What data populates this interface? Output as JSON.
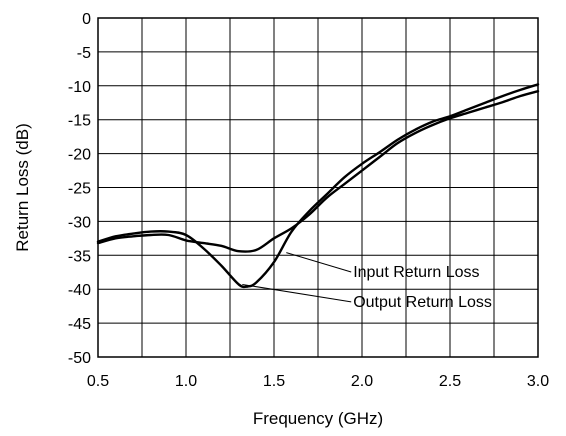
{
  "chart_data": {
    "type": "line",
    "xlabel": "Frequency (GHz)",
    "ylabel": "Return Loss (dB)",
    "xlim": [
      0.5,
      3.0
    ],
    "ylim": [
      -50,
      0
    ],
    "xticks": [
      0.5,
      0.75,
      1.0,
      1.25,
      1.5,
      1.75,
      2.0,
      2.25,
      2.5,
      2.75,
      3.0
    ],
    "xtick_labels": [
      "0.5",
      "",
      "1.0",
      "",
      "1.5",
      "",
      "2.0",
      "",
      "2.5",
      "",
      "3.0"
    ],
    "yticks": [
      0,
      -5,
      -10,
      -15,
      -20,
      -25,
      -30,
      -35,
      -40,
      -45,
      -50
    ],
    "ytick_labels": [
      "0",
      "-5",
      "-10",
      "-15",
      "-20",
      "-25",
      "-30",
      "-35",
      "-40",
      "-45",
      "-50"
    ],
    "grid": true,
    "series": [
      {
        "name": "Input Return Loss",
        "x": [
          0.5,
          0.6,
          0.7,
          0.8,
          0.9,
          1.0,
          1.1,
          1.2,
          1.3,
          1.4,
          1.5,
          1.6,
          1.7,
          1.8,
          1.9,
          2.0,
          2.1,
          2.2,
          2.3,
          2.4,
          2.5,
          2.6,
          2.7,
          2.8,
          2.9,
          3.0
        ],
        "y": [
          -33.2,
          -32.5,
          -32.2,
          -32.0,
          -32.0,
          -32.8,
          -33.2,
          -33.6,
          -34.4,
          -34.2,
          -32.5,
          -31.0,
          -29.0,
          -26.5,
          -24.5,
          -22.5,
          -20.5,
          -18.5,
          -17.0,
          -15.8,
          -14.8,
          -14.0,
          -13.2,
          -12.4,
          -11.5,
          -10.8
        ]
      },
      {
        "name": "Output Return Loss",
        "x": [
          0.5,
          0.6,
          0.7,
          0.8,
          0.9,
          1.0,
          1.1,
          1.2,
          1.3,
          1.35,
          1.4,
          1.5,
          1.6,
          1.7,
          1.8,
          1.9,
          2.0,
          2.1,
          2.2,
          2.3,
          2.4,
          2.5,
          2.6,
          2.7,
          2.8,
          2.9,
          3.0
        ],
        "y": [
          -33.0,
          -32.2,
          -31.8,
          -31.5,
          -31.5,
          -32.0,
          -34.0,
          -36.5,
          -39.3,
          -39.6,
          -39.0,
          -36.0,
          -31.5,
          -28.5,
          -26.0,
          -23.5,
          -21.5,
          -19.8,
          -18.0,
          -16.5,
          -15.3,
          -14.5,
          -13.5,
          -12.5,
          -11.5,
          -10.6,
          -9.8
        ]
      }
    ],
    "annotations": [
      {
        "text": "Input Return Loss",
        "x": 1.95,
        "y": -38.2,
        "target_x": 1.57,
        "target_y": -34.6
      },
      {
        "text": "Output Return Loss",
        "x": 1.95,
        "y": -42.6,
        "target_x": 1.32,
        "target_y": -39.3
      }
    ]
  }
}
